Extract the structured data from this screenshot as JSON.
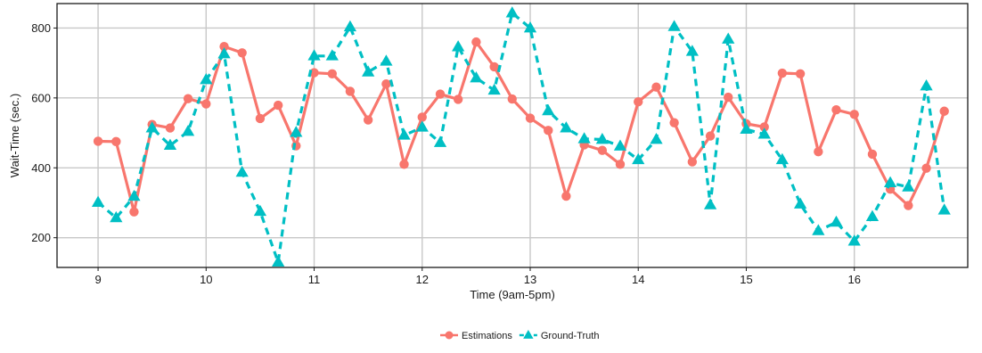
{
  "chart_data": {
    "type": "line",
    "xlabel": "Time (9am-5pm)",
    "ylabel": "Wait-Time (sec.)",
    "xlim": [
      8.62,
      17.05
    ],
    "ylim": [
      115,
      870
    ],
    "x_ticks": [
      9,
      10,
      11,
      12,
      13,
      14,
      15,
      16
    ],
    "x_tick_labels": [
      "9",
      "10",
      "11",
      "12",
      "13",
      "14",
      "15",
      "16"
    ],
    "y_ticks": [
      200,
      400,
      600,
      800
    ],
    "y_tick_labels": [
      "200",
      "400",
      "600",
      "800"
    ],
    "grid": true,
    "legend_position": "bottom",
    "series": [
      {
        "name": "Estimations",
        "color": "#f8766d",
        "marker": "circle",
        "line_style": "solid",
        "x": [
          9.0,
          9.167,
          9.333,
          9.5,
          9.667,
          9.833,
          10.0,
          10.167,
          10.333,
          10.5,
          10.667,
          10.833,
          11.0,
          11.167,
          11.333,
          11.5,
          11.667,
          11.833,
          12.0,
          12.167,
          12.333,
          12.5,
          12.667,
          12.833,
          13.0,
          13.167,
          13.333,
          13.5,
          13.667,
          13.833,
          14.0,
          14.167,
          14.333,
          14.5,
          14.667,
          14.833,
          15.0,
          15.167,
          15.333,
          15.5,
          15.667,
          15.833,
          16.0,
          16.167,
          16.333,
          16.5,
          16.667,
          16.833
        ],
        "values": [
          476,
          475,
          274,
          524,
          514,
          598,
          583,
          747,
          729,
          541,
          579,
          463,
          672,
          669,
          619,
          537,
          640,
          410,
          545,
          611,
          596,
          760,
          689,
          597,
          542,
          507,
          319,
          466,
          450,
          410,
          589,
          631,
          529,
          417,
          491,
          602,
          526,
          517,
          671,
          669,
          446,
          566,
          553,
          439,
          339,
          292,
          399,
          562
        ]
      },
      {
        "name": "Ground-Truth",
        "color": "#00bfc4",
        "marker": "triangle",
        "line_style": "dashed",
        "x": [
          9.0,
          9.167,
          9.333,
          9.5,
          9.667,
          9.833,
          10.0,
          10.167,
          10.333,
          10.5,
          10.667,
          10.833,
          11.0,
          11.167,
          11.333,
          11.5,
          11.667,
          11.833,
          12.0,
          12.167,
          12.333,
          12.5,
          12.667,
          12.833,
          13.0,
          13.167,
          13.333,
          13.5,
          13.667,
          13.833,
          14.0,
          14.167,
          14.333,
          14.5,
          14.667,
          14.833,
          15.0,
          15.167,
          15.333,
          15.5,
          15.667,
          15.833,
          16.0,
          16.167,
          16.333,
          16.5,
          16.667,
          16.833
        ],
        "values": [
          301,
          257,
          318,
          514,
          464,
          504,
          652,
          726,
          387,
          275,
          130,
          501,
          720,
          720,
          803,
          674,
          705,
          493,
          516,
          472,
          746,
          657,
          622,
          843,
          800,
          563,
          514,
          483,
          481,
          462,
          423,
          481,
          804,
          733,
          294,
          768,
          510,
          496,
          423,
          296,
          220,
          244,
          190,
          260,
          357,
          345,
          634,
          279
        ]
      }
    ]
  }
}
